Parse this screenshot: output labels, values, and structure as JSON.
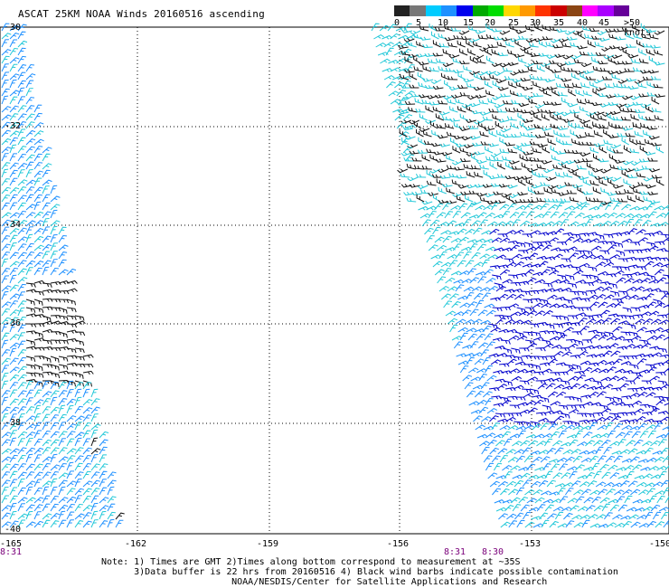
{
  "title": "ASCAT 25KM NOAA Winds 20160516 ascending",
  "scale": {
    "labels": [
      "0",
      "5",
      "10",
      "15",
      "20",
      "25",
      "30",
      "35",
      "40",
      "45",
      ">50 knots"
    ],
    "colors": [
      "#222222",
      "#777777",
      "#00ccff",
      "#1e90ff",
      "#0000ee",
      "#00aa00",
      "#00dd00",
      "#ffd700",
      "#ff9900",
      "#ff3300",
      "#cc0000",
      "#8b4513",
      "#ff00ff",
      "#aa00ff",
      "#660099"
    ]
  },
  "y_axis": {
    "labels": [
      "-30",
      "-32",
      "-34",
      "-36",
      "-38",
      "-40"
    ]
  },
  "x_axis": {
    "labels": [
      "-165",
      "-162",
      "-159",
      "-156",
      "-153",
      "-150"
    ]
  },
  "times": {
    "left": "8:31",
    "mid1": "8:31",
    "mid2": "8:30"
  },
  "notes": {
    "line1": "Note: 1) Times are GMT 2)Times along bottom correspond to measurement at ~35S",
    "line2": "      3)Data buffer is 22 hrs from 20160516 4) Black wind barbs indicate possible contamination",
    "line3": "      NOAA/NESDIS/Center for Satellite Applications and Research"
  },
  "colors": {
    "barb_light": "#22c8d8",
    "barb_mid": "#1e90ff",
    "barb_dark": "#0000cc",
    "barb_flag": "#111111",
    "grid": "#000000"
  }
}
